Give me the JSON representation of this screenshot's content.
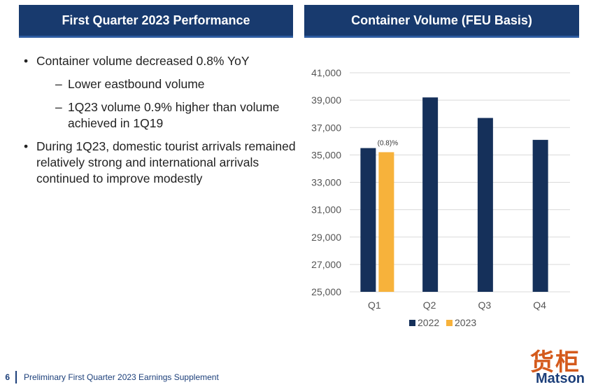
{
  "left_panel": {
    "title": "First Quarter 2023 Performance",
    "bullets": [
      {
        "text": "Container volume decreased 0.8% YoY",
        "level": 1
      },
      {
        "text": "Lower eastbound volume",
        "level": 2
      },
      {
        "text": "1Q23 volume 0.9% higher than volume achieved in 1Q19",
        "level": 2
      },
      {
        "text": "During 1Q23, domestic tourist arrivals remained relatively strong and international arrivals continued to improve modestly",
        "level": 1
      }
    ]
  },
  "right_panel": {
    "title": "Container Volume (FEU Basis)"
  },
  "chart_data": {
    "type": "bar",
    "title": "Container Volume (FEU Basis)",
    "categories": [
      "Q1",
      "Q2",
      "Q3",
      "Q4"
    ],
    "series": [
      {
        "name": "2022",
        "color": "#15305a",
        "values": [
          35500,
          39200,
          37700,
          36100
        ]
      },
      {
        "name": "2023",
        "color": "#f7b23b",
        "values": [
          35200,
          null,
          null,
          null
        ]
      }
    ],
    "ylim": [
      25000,
      41000
    ],
    "yticks": [
      "25,000",
      "27,000",
      "29,000",
      "31,000",
      "33,000",
      "35,000",
      "37,000",
      "39,000",
      "41,000"
    ],
    "grid": true,
    "legend": "bottom",
    "annotations": [
      {
        "category": "Q1",
        "series": "2023",
        "text": "(0.8)%"
      }
    ]
  },
  "footer": {
    "page_number": "6",
    "text": "Preliminary First Quarter 2023 Earnings Supplement"
  },
  "logo": {
    "chinese": "货柜",
    "brand": "Matson",
    "url": "www.hh...net"
  }
}
